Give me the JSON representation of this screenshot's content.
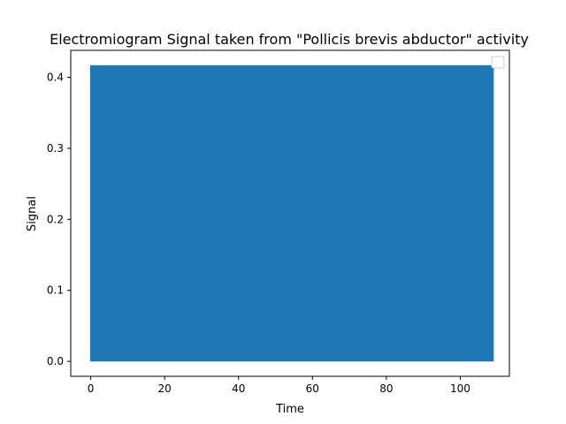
{
  "chart_data": {
    "type": "line",
    "title": "Electromiogram Signal taken from \"Pollicis brevis abductor\" activity",
    "xlabel": "Time",
    "ylabel": "Signal",
    "xlim": [
      -5.4,
      113.3
    ],
    "ylim": [
      -0.021,
      0.438
    ],
    "x_ticks": [
      0,
      20,
      40,
      60,
      80,
      100
    ],
    "y_ticks": [
      0.0,
      0.1,
      0.2,
      0.3,
      0.4
    ],
    "x_tick_labels": [
      "0",
      "20",
      "40",
      "60",
      "80",
      "100"
    ],
    "y_tick_labels": [
      "0.0",
      "0.1",
      "0.2",
      "0.3",
      "0.4"
    ],
    "grid": false,
    "legend": {
      "visible": true,
      "placement": "top-right",
      "entries": []
    },
    "series": [
      {
        "color": "#1f77b4",
        "x_range": [
          0,
          108.9
        ],
        "y_min": 0.0,
        "y_max": 0.417,
        "note_dense_oscillation": true
      }
    ]
  }
}
